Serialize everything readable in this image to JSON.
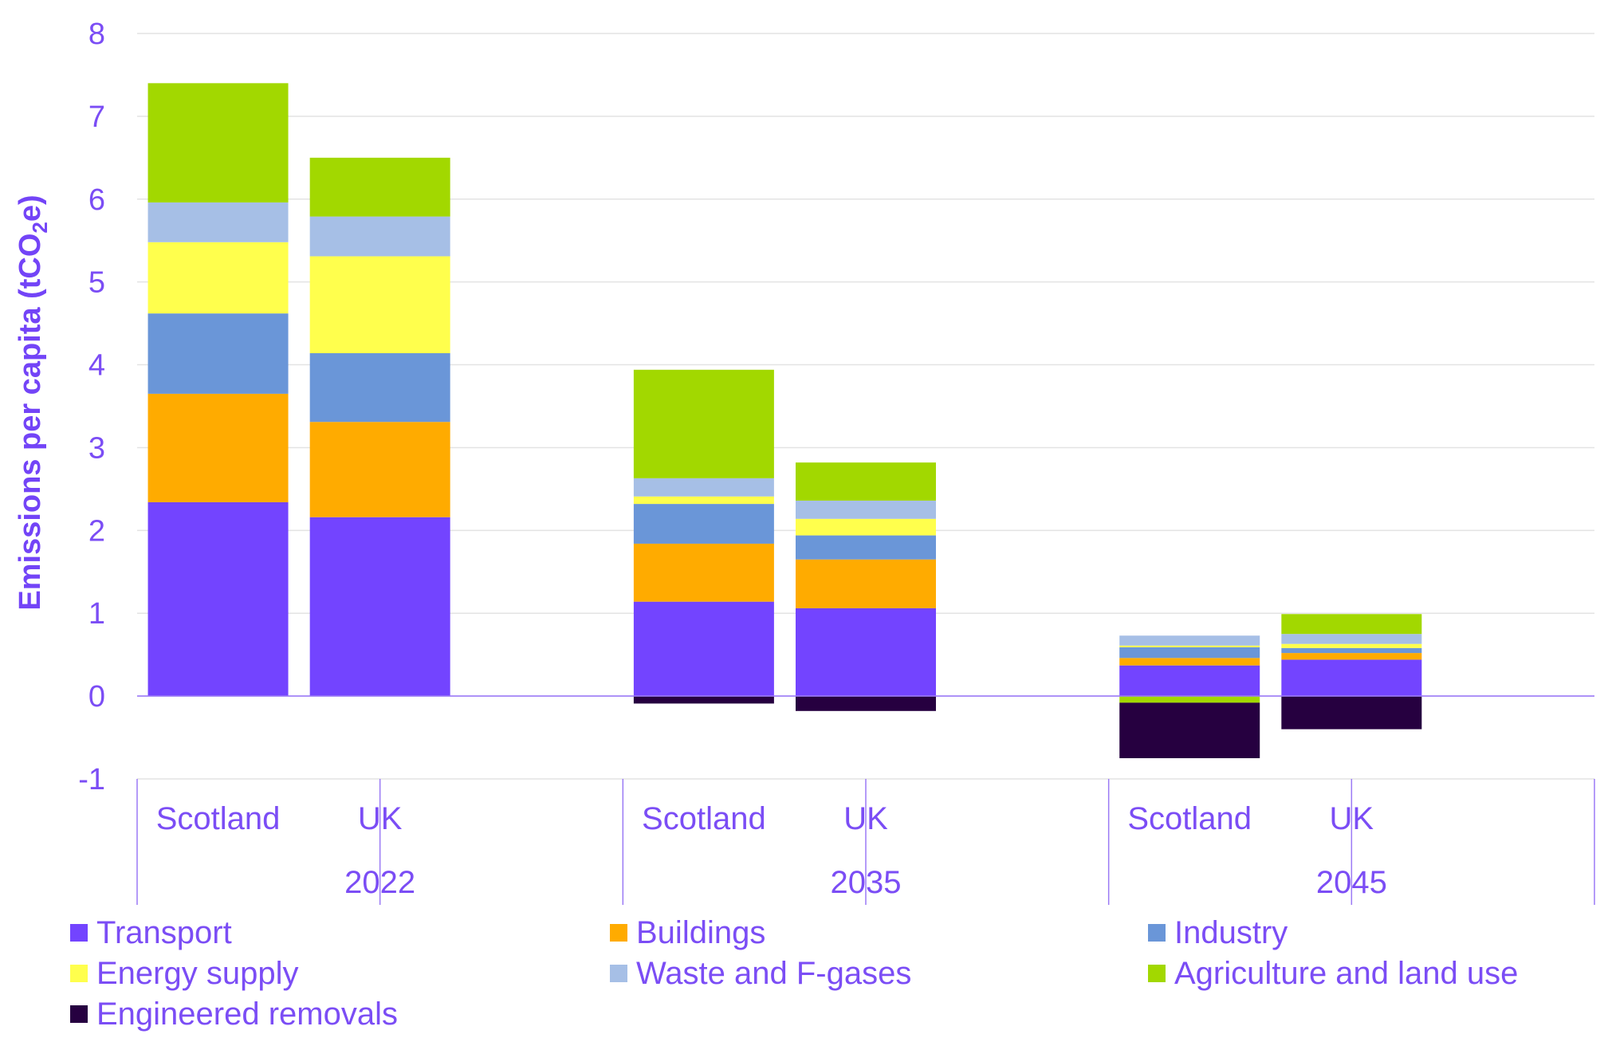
{
  "chart_data": {
    "type": "bar",
    "stacked": true,
    "ylabel_main": "Emissions per capita (tCO",
    "ylabel_sub": "2",
    "ylabel_end": "e)",
    "ylim": [
      -1,
      8
    ],
    "yticks": [
      "-1",
      "0",
      "1",
      "2",
      "3",
      "4",
      "5",
      "6",
      "7",
      "8"
    ],
    "grid": true,
    "legend_position": "bottom",
    "groups": [
      "2022",
      "2035",
      "2045"
    ],
    "categories": [
      {
        "group": "2022",
        "label": "Scotland"
      },
      {
        "group": "2022",
        "label": "UK"
      },
      {
        "group": "2035",
        "label": "Scotland"
      },
      {
        "group": "2035",
        "label": "UK"
      },
      {
        "group": "2045",
        "label": "Scotland"
      },
      {
        "group": "2045",
        "label": "UK"
      }
    ],
    "series": [
      {
        "name": "Transport",
        "color": "#7344ff",
        "values": [
          2.34,
          2.16,
          1.14,
          1.06,
          0.37,
          0.44
        ]
      },
      {
        "name": "Buildings",
        "color": "#ffab00",
        "values": [
          1.31,
          1.15,
          0.7,
          0.59,
          0.09,
          0.08
        ]
      },
      {
        "name": "Industry",
        "color": "#6a96d8",
        "values": [
          0.97,
          0.83,
          0.48,
          0.29,
          0.13,
          0.06
        ]
      },
      {
        "name": "Energy supply",
        "color": "#ffff4d",
        "values": [
          0.86,
          1.17,
          0.09,
          0.2,
          0.02,
          0.05
        ]
      },
      {
        "name": "Waste and F-gases",
        "color": "#a6bfe6",
        "values": [
          0.48,
          0.48,
          0.22,
          0.22,
          0.12,
          0.12
        ]
      },
      {
        "name": "Agriculture and land use",
        "color": "#a2d800",
        "values": [
          1.44,
          0.71,
          1.31,
          0.46,
          -0.08,
          0.24
        ]
      },
      {
        "name": "Engineered removals",
        "color": "#260040",
        "values": [
          0,
          0,
          -0.09,
          -0.18,
          -0.67,
          -0.4
        ]
      }
    ]
  }
}
